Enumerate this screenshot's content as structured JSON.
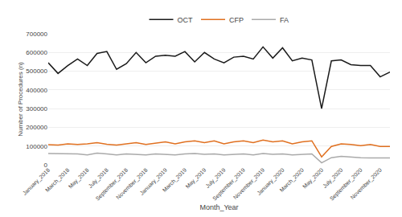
{
  "chart_data": {
    "type": "line",
    "xlabel": "Month_Year",
    "ylabel": "Number of Procedures (n)",
    "categories": [
      "January_2018",
      null,
      "March_2018",
      null,
      "May_2018",
      null,
      "July_2018",
      null,
      "September_2018",
      null,
      "November_2018",
      null,
      "January_2019",
      null,
      "March_2019",
      null,
      "May_2019",
      null,
      "July_2019",
      null,
      "September_2019",
      null,
      "November_2019",
      null,
      "January_2020",
      null,
      "March_2020",
      null,
      "May_2020",
      null,
      "July_2020",
      null,
      "September_2020",
      null,
      "November_2020",
      null
    ],
    "series": [
      {
        "name": "OCT",
        "color": "#1a1a1a",
        "values": [
          545000,
          488000,
          530000,
          565000,
          530000,
          595000,
          605000,
          510000,
          540000,
          600000,
          545000,
          580000,
          585000,
          580000,
          605000,
          550000,
          600000,
          565000,
          545000,
          575000,
          580000,
          565000,
          630000,
          570000,
          625000,
          555000,
          570000,
          560000,
          300000,
          555000,
          560000,
          535000,
          530000,
          530000,
          470000,
          495000
        ]
      },
      {
        "name": "CFP",
        "color": "#e07020",
        "values": [
          107000,
          105000,
          112000,
          108000,
          112000,
          118000,
          110000,
          105000,
          112000,
          118000,
          108000,
          114000,
          122000,
          112000,
          122000,
          128000,
          118000,
          128000,
          112000,
          122000,
          128000,
          118000,
          132000,
          122000,
          128000,
          112000,
          122000,
          128000,
          42000,
          98000,
          112000,
          108000,
          102000,
          108000,
          98000,
          98000
        ]
      },
      {
        "name": "FA",
        "color": "#aaaaaa",
        "values": [
          60000,
          60000,
          57000,
          58000,
          53000,
          62000,
          58000,
          53000,
          58000,
          56000,
          53000,
          58000,
          56000,
          53000,
          58000,
          60000,
          56000,
          58000,
          53000,
          56000,
          58000,
          53000,
          60000,
          56000,
          58000,
          53000,
          56000,
          58000,
          10000,
          38000,
          45000,
          40000,
          38000,
          36000,
          36000,
          36000
        ]
      }
    ],
    "ylim": [
      0,
      700000
    ],
    "yticks": [
      0,
      100000,
      200000,
      300000,
      400000,
      500000,
      600000,
      700000
    ],
    "grid": true,
    "legend": "top"
  }
}
